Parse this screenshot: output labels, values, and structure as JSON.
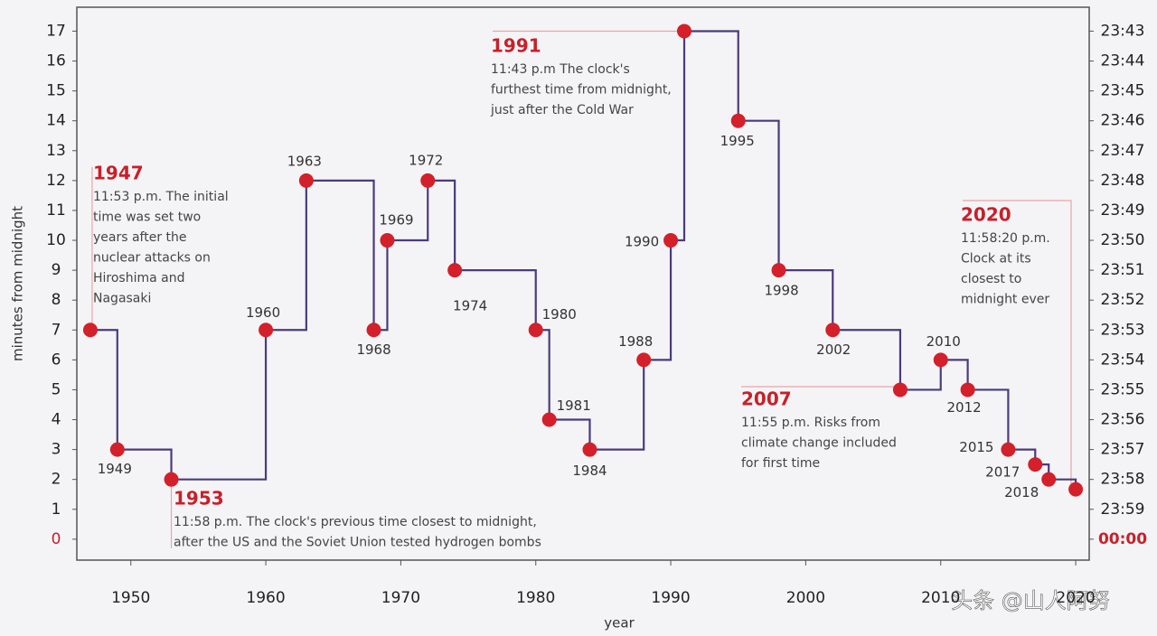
{
  "chart_data": {
    "type": "step",
    "x_label": "year",
    "y_label": "minutes from midnight",
    "x": [
      1947,
      1949,
      1953,
      1960,
      1963,
      1968,
      1969,
      1972,
      1974,
      1980,
      1981,
      1984,
      1988,
      1990,
      1991,
      1995,
      1998,
      2002,
      2007,
      2010,
      2012,
      2015,
      2017,
      2018,
      2020
    ],
    "values": [
      7,
      3,
      2,
      7,
      12,
      7,
      10,
      12,
      9,
      7,
      4,
      3,
      6,
      10,
      17,
      14,
      9,
      7,
      5,
      6,
      5,
      3,
      2.5,
      2,
      1.67
    ],
    "point_labels": [
      null,
      "1949",
      null,
      "1960",
      "1963",
      "1968",
      "1969",
      "1972",
      "1974",
      "1980",
      "1981",
      "1984",
      "1988",
      "1990",
      null,
      "1995",
      "1998",
      "2002",
      null,
      "2010",
      "2012",
      "2015",
      "2017",
      "2018",
      null
    ],
    "line_color": "#4b3b7c",
    "marker_color": "#d3202a",
    "highlight_color": "#c8202a",
    "xlim": [
      1946,
      2021
    ],
    "xticks": [
      1950,
      1960,
      1970,
      1980,
      1990,
      2000,
      2010,
      2020
    ],
    "ylim": [
      -0.7,
      17.8
    ],
    "yticks": [
      0,
      1,
      2,
      3,
      4,
      5,
      6,
      7,
      8,
      9,
      10,
      11,
      12,
      13,
      14,
      15,
      16,
      17
    ],
    "y2lim": [
      -0.7,
      17.8
    ],
    "y2ticks": [
      {
        "value": 0,
        "label": "00:00"
      },
      {
        "value": 1,
        "label": "23:59"
      },
      {
        "value": 2,
        "label": "23:58"
      },
      {
        "value": 3,
        "label": "23:57"
      },
      {
        "value": 4,
        "label": "23:56"
      },
      {
        "value": 5,
        "label": "23:55"
      },
      {
        "value": 6,
        "label": "23:54"
      },
      {
        "value": 7,
        "label": "23:53"
      },
      {
        "value": 8,
        "label": "23:52"
      },
      {
        "value": 9,
        "label": "23:51"
      },
      {
        "value": 10,
        "label": "23:50"
      },
      {
        "value": 11,
        "label": "23:49"
      },
      {
        "value": 12,
        "label": "23:48"
      },
      {
        "value": 13,
        "label": "23:47"
      },
      {
        "value": 14,
        "label": "23:46"
      },
      {
        "value": 15,
        "label": "23:45"
      },
      {
        "value": 16,
        "label": "23:44"
      },
      {
        "value": 17,
        "label": "23:43"
      }
    ],
    "annotations": [
      {
        "point": 0,
        "headline": "1947",
        "lines": [
          "11:53 p.m. The initial",
          "time was set two",
          "years after the",
          "nuclear attacks on",
          "Hiroshima and",
          "Nagasaki"
        ]
      },
      {
        "point": 2,
        "headline": "1953",
        "lines": [
          "11:58 p.m. The clock's previous time closest to midnight,",
          "after the US and the Soviet Union tested hydrogen bombs"
        ]
      },
      {
        "point": 14,
        "headline": "1991",
        "lines": [
          "11:43 p.m The clock's",
          "furthest time from midnight,",
          "just after the Cold War"
        ]
      },
      {
        "point": 18,
        "headline": "2007",
        "lines": [
          "11:55 p.m. Risks from",
          "climate change included",
          "for first time"
        ]
      },
      {
        "point": 24,
        "headline": "2020",
        "lines": [
          "11:58:20 p.m.",
          "Clock at its",
          "closest to",
          "midnight ever"
        ]
      }
    ],
    "watermark": "头条 @山人阿努"
  }
}
